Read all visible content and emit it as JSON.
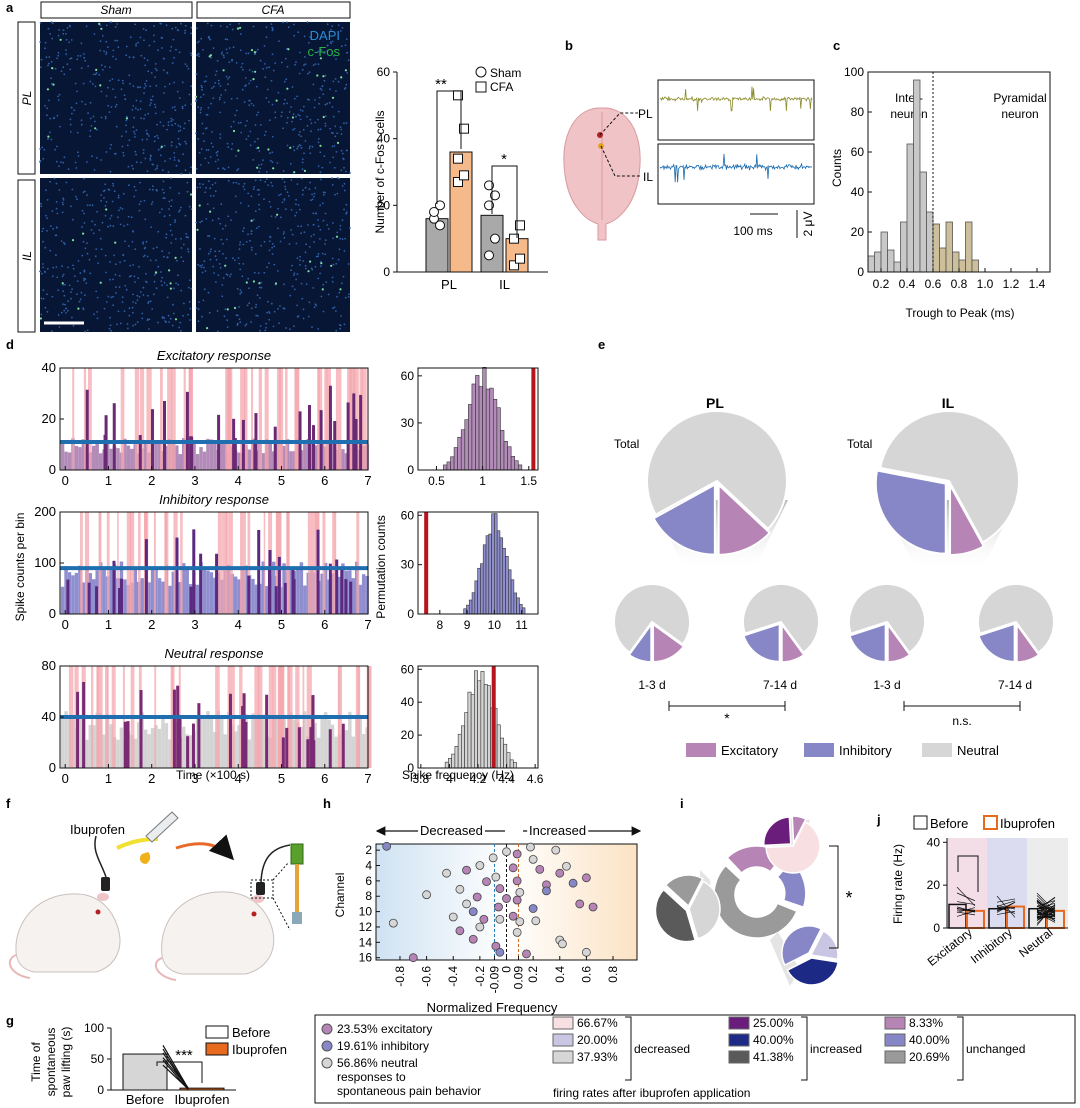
{
  "panels": {
    "a": "a",
    "b": "b",
    "c": "c",
    "d": "d",
    "e": "e",
    "f": "f",
    "g": "g",
    "h": "h",
    "i": "i",
    "j": "j"
  },
  "panel_a": {
    "col_headers": [
      "Sham",
      "CFA"
    ],
    "row_labels": [
      "PL",
      "IL"
    ],
    "stain_dapi": "DAPI",
    "stain_cfos": "c-Fos",
    "bar_chart": {
      "ylabel": "Number of c-Fos⁺ cells",
      "legend": [
        "Sham",
        "CFA"
      ],
      "sig": [
        "**",
        "*"
      ],
      "chart_data": {
        "type": "bar",
        "categories": [
          "PL",
          "IL"
        ],
        "series": [
          {
            "name": "Sham",
            "values": [
              16,
              17
            ],
            "points": [
              [
                16,
                14,
                18,
                20
              ],
              [
                5,
                10,
                20,
                23,
                26
              ]
            ]
          },
          {
            "name": "CFA",
            "values": [
              36,
              10
            ],
            "points": [
              [
                27,
                29,
                34,
                43,
                53
              ],
              [
                2,
                4,
                10,
                14
              ]
            ]
          }
        ],
        "yticks": [
          0,
          20,
          40,
          60
        ],
        "ylim": [
          0,
          60
        ]
      }
    }
  },
  "panel_b": {
    "labels": [
      "PL",
      "IL"
    ],
    "scale_time": "100 ms",
    "scale_volt": "2 μV"
  },
  "panel_c": {
    "text_left": [
      "Inter-",
      "neuron"
    ],
    "text_right": [
      "Pyramidal",
      "neuron"
    ],
    "xlabel": "Trough to Peak (ms)",
    "ylabel": "Counts",
    "chart_data": {
      "type": "bar",
      "bin_start": 0.1,
      "bin_width": 0.1,
      "values": [
        8,
        10,
        20,
        11,
        5,
        25,
        64,
        96,
        50,
        30,
        24,
        12,
        25,
        10,
        6,
        25,
        6
      ],
      "xticks": [
        0.2,
        0.4,
        0.6,
        0.8,
        1.0,
        1.2,
        1.4
      ],
      "yticks": [
        0,
        20,
        40,
        60,
        80,
        100
      ],
      "threshold": 0.6,
      "xlim": [
        0.1,
        1.5
      ],
      "ylim": [
        0,
        100
      ]
    }
  },
  "panel_d": {
    "titles": [
      "Excitatory response",
      "Inhibitory response",
      "Neutral response"
    ],
    "ylabel_left": "Spike counts per bin",
    "xlabel_left": "Time (×100 s)",
    "ylabel_right": "Permutation counts",
    "xlabel_right": "Spike frequency (Hz)",
    "traces": [
      {
        "yticks": [
          0,
          20,
          40
        ],
        "ymax": 40,
        "mean": 11
      },
      {
        "yticks": [
          0,
          100,
          200
        ],
        "ymax": 200,
        "mean": 90
      },
      {
        "yticks": [
          0,
          40,
          80
        ],
        "ymax": 80,
        "mean": 40
      }
    ],
    "time_ticks": [
      0,
      1,
      2,
      3,
      4,
      5,
      6,
      7
    ],
    "hists": [
      {
        "xticks": [
          "0.5",
          "1",
          "1.5"
        ],
        "yticks": [
          0,
          30,
          60
        ],
        "xlim": [
          0.3,
          1.6
        ],
        "ymax": 65,
        "center": 1.0,
        "sd": 0.17,
        "obs": 1.55
      },
      {
        "xticks": [
          "8",
          "9",
          "10",
          "11"
        ],
        "yticks": [
          0,
          30,
          60
        ],
        "xlim": [
          7.2,
          11.6
        ],
        "ymax": 62,
        "center": 10.0,
        "sd": 0.45,
        "obs": 7.5
      },
      {
        "xticks": [
          "3.8",
          "4",
          "4.2",
          "4.4",
          "4.6"
        ],
        "yticks": [
          0,
          20,
          40,
          60
        ],
        "xlim": [
          3.78,
          4.62
        ],
        "ymax": 62,
        "center": 4.22,
        "sd": 0.1,
        "obs": 4.31
      }
    ]
  },
  "panel_e": {
    "regions": [
      "PL",
      "IL"
    ],
    "total": "Total",
    "periods": [
      "1-3 d",
      "7-14 d"
    ],
    "sig": [
      "*",
      "n.s."
    ],
    "legend": [
      "Excitatory",
      "Inhibitory",
      "Neutral"
    ],
    "colors": {
      "excitatory": "#b784b6",
      "inhibitory": "#8787c8",
      "neutral": "#d6d6d6"
    },
    "chart_data": {
      "type": "pie",
      "pies": [
        {
          "name": "PL Total",
          "excitatory": 0.13,
          "inhibitory": 0.17
        },
        {
          "name": "IL Total",
          "excitatory": 0.08,
          "inhibitory": 0.28
        },
        {
          "name": "PL 1-3 d",
          "excitatory": 0.15,
          "inhibitory": 0.1
        },
        {
          "name": "PL 7-14 d",
          "excitatory": 0.1,
          "inhibitory": 0.2
        },
        {
          "name": "IL 1-3 d",
          "excitatory": 0.1,
          "inhibitory": 0.2
        },
        {
          "name": "IL 7-14 d",
          "excitatory": 0.1,
          "inhibitory": 0.2
        }
      ]
    }
  },
  "panel_f": {
    "drug": "Ibuprofen"
  },
  "panel_g": {
    "ylabel": [
      "Time of",
      "spontaneous",
      "paw lifting (s)"
    ],
    "legend": [
      "Before",
      "Ibuprofen"
    ],
    "sig": "***",
    "chart_data": {
      "type": "bar",
      "categories": [
        "Before",
        "Ibuprofen"
      ],
      "values": [
        58,
        3
      ],
      "yticks": [
        0,
        50,
        100
      ],
      "ylim": [
        0,
        100
      ]
    }
  },
  "panel_h": {
    "decreased": "Decreased",
    "increased": "Increased",
    "ylabel": "Channel",
    "xlabel": "Normalized Frequency",
    "chart_data": {
      "type": "scatter",
      "xticks": [
        "-0.8",
        "-0.6",
        "-0.4",
        "-0.2",
        "-0.09",
        "0",
        "0.09",
        "0.2",
        "0.4",
        "0.6",
        "0.8"
      ],
      "xtick_values": [
        -0.8,
        -0.6,
        -0.4,
        -0.2,
        -0.09,
        0,
        0.09,
        0.2,
        0.4,
        0.6,
        0.8
      ],
      "yticks": [
        2,
        4,
        6,
        8,
        10,
        12,
        14,
        16
      ],
      "xlim": [
        -0.98,
        0.98
      ],
      "ylim": [
        1.2,
        16.3
      ],
      "thresholds": [
        -0.09,
        0,
        0.09
      ],
      "points": [
        [
          -0.9,
          1.5,
          "i"
        ],
        [
          0.18,
          1.6,
          "n"
        ],
        [
          0.2,
          3.2,
          "n"
        ],
        [
          0.37,
          2.0,
          "n"
        ],
        [
          0.08,
          2.5,
          "e"
        ],
        [
          -0.1,
          3.0,
          "n"
        ],
        [
          0.0,
          2.2,
          "n"
        ],
        [
          -0.3,
          4.6,
          "e"
        ],
        [
          -0.2,
          4.0,
          "n"
        ],
        [
          0.05,
          4.3,
          "e"
        ],
        [
          0.25,
          4.5,
          "e"
        ],
        [
          0.4,
          5.0,
          "e"
        ],
        [
          0.45,
          4.1,
          "n"
        ],
        [
          0.6,
          5.6,
          "e"
        ],
        [
          -0.45,
          5.0,
          "n"
        ],
        [
          -0.08,
          5.5,
          "n"
        ],
        [
          -0.15,
          6.1,
          "e"
        ],
        [
          0.08,
          6.0,
          "e"
        ],
        [
          0.3,
          6.5,
          "e"
        ],
        [
          0.5,
          6.3,
          "i"
        ],
        [
          -0.35,
          7.1,
          "n"
        ],
        [
          -0.05,
          7.0,
          "e"
        ],
        [
          0.1,
          7.5,
          "n"
        ],
        [
          0.3,
          7.3,
          "i"
        ],
        [
          -0.6,
          7.8,
          "n"
        ],
        [
          -0.22,
          8.1,
          "e"
        ],
        [
          0.0,
          8.3,
          "e"
        ],
        [
          0.08,
          8.5,
          "e"
        ],
        [
          -0.3,
          9.0,
          "n"
        ],
        [
          -0.06,
          9.4,
          "e"
        ],
        [
          0.2,
          9.6,
          "i"
        ],
        [
          0.55,
          9.0,
          "e"
        ],
        [
          0.65,
          9.4,
          "e"
        ],
        [
          -0.25,
          10.0,
          "i"
        ],
        [
          -0.4,
          10.7,
          "n"
        ],
        [
          -0.85,
          11.5,
          "n"
        ],
        [
          -0.17,
          11.0,
          "e"
        ],
        [
          -0.05,
          11.0,
          "n"
        ],
        [
          0.05,
          10.6,
          "e"
        ],
        [
          0.1,
          11.3,
          "n"
        ],
        [
          0.22,
          11.2,
          "n"
        ],
        [
          -0.2,
          12.0,
          "n"
        ],
        [
          -0.35,
          12.5,
          "e"
        ],
        [
          0.08,
          12.7,
          "n"
        ],
        [
          -0.25,
          13.6,
          "e"
        ],
        [
          0.4,
          13.7,
          "n"
        ],
        [
          0.42,
          14.2,
          "n"
        ],
        [
          -0.08,
          14.5,
          "e"
        ],
        [
          -0.05,
          15.3,
          "i"
        ],
        [
          0.15,
          15.5,
          "e"
        ],
        [
          0.6,
          15.3,
          "n"
        ],
        [
          -0.7,
          16.0,
          "e"
        ]
      ]
    }
  },
  "panel_i": {
    "sig": "*",
    "chart_data": {
      "type": "pie",
      "note": "fractions from legend",
      "decreased": [
        0.6667,
        0.2,
        0.3793
      ],
      "increased": [
        0.25,
        0.4,
        0.4138
      ],
      "unchanged": [
        0.0833,
        0.4,
        0.2069
      ]
    }
  },
  "panel_j": {
    "legend": [
      "Before",
      "Ibuprofen"
    ],
    "ylabel": "Firing rate (Hz)",
    "sig": "*",
    "chart_data": {
      "type": "bar",
      "categories": [
        "Excitatory",
        "Inhibitory",
        "Neutral"
      ],
      "series": [
        {
          "name": "Before",
          "values": [
            11,
            9,
            9
          ]
        },
        {
          "name": "Ibuprofen",
          "values": [
            8,
            10,
            8
          ]
        }
      ],
      "yticks": [
        0,
        20,
        40
      ],
      "ylim": [
        0,
        42
      ]
    }
  },
  "legend_box": {
    "left": [
      "23.53% excitatory",
      "19.61% inhibitory",
      "56.86% neutral"
    ],
    "left_note": [
      "responses to",
      "spontaneous pain behavior"
    ],
    "groups": [
      {
        "label": "decreased",
        "items": [
          "66.67%",
          "20.00%",
          "37.93%"
        ],
        "colors": [
          "#f8dfe2",
          "#c9c6e3",
          "#d6d6d6"
        ]
      },
      {
        "label": "increased",
        "items": [
          "25.00%",
          "40.00%",
          "41.38%"
        ],
        "colors": [
          "#6a1d7b",
          "#1c2a86",
          "#5a5a5a"
        ]
      },
      {
        "label": "unchanged",
        "items": [
          "8.33%",
          "40.00%",
          "20.69%"
        ],
        "colors": [
          "#b784b6",
          "#8787c8",
          "#9a9a9a"
        ]
      }
    ],
    "footer": "firing rates after ibuprofen application"
  }
}
